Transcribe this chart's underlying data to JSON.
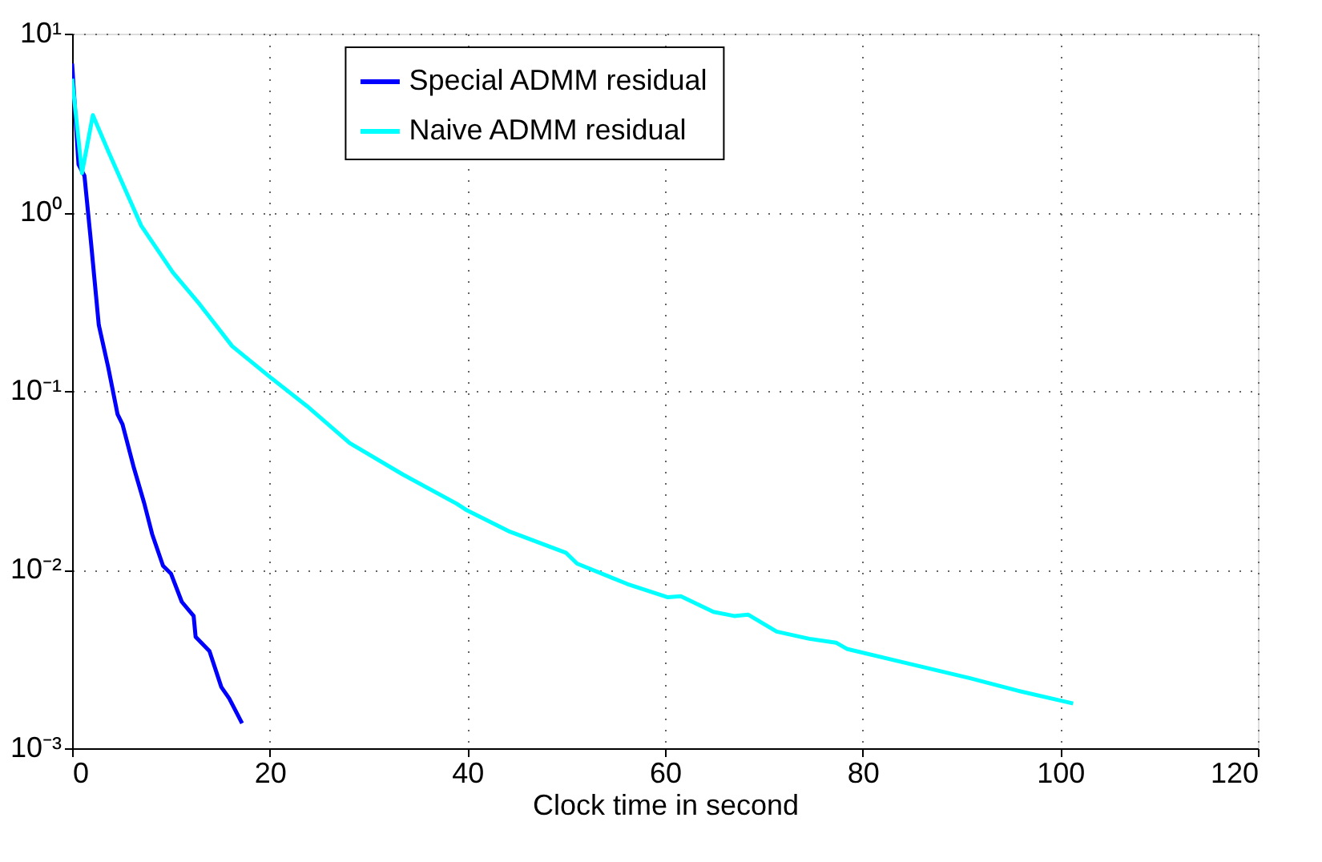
{
  "chart_data": {
    "type": "line",
    "xlabel": "Clock time in second",
    "xlim": [
      0,
      120
    ],
    "xticks": [
      0,
      20,
      40,
      60,
      80,
      100,
      120
    ],
    "ylim": [
      0.001,
      10
    ],
    "yticks": [
      {
        "value": 0.001,
        "label": "10⁻³"
      },
      {
        "value": 0.01,
        "label": "10⁻²"
      },
      {
        "value": 0.1,
        "label": "10⁻¹"
      },
      {
        "value": 1,
        "label": "10⁰"
      },
      {
        "value": 10,
        "label": "10¹"
      }
    ],
    "log": "y",
    "grid": true,
    "legend": "top",
    "marker": "none",
    "line_style": "solid",
    "series": [
      {
        "name": "Special ADMM residual",
        "color": "#0000ff",
        "x": [
          0,
          0.65,
          1.25,
          1.9,
          2.7,
          3.65,
          4.6,
          5.1,
          6.2,
          7.3,
          8.1,
          9.2,
          10.0,
          11.1,
          12.3,
          12.5,
          13.9,
          15.1,
          15.9,
          17.2
        ],
        "values": [
          6.8,
          1.85,
          1.6,
          0.69,
          0.234,
          0.136,
          0.074,
          0.065,
          0.038,
          0.0235,
          0.0158,
          0.0105,
          0.0095,
          0.0066,
          0.0055,
          0.0042,
          0.0035,
          0.0022,
          0.0019,
          0.00138
        ]
      },
      {
        "name": "Naive ADMM residual",
        "color": "#00ffff",
        "x": [
          0,
          1.0,
          2.1,
          3.7,
          7.0,
          10.2,
          12.9,
          16.2,
          20,
          23.8,
          28.1,
          33.5,
          38.9,
          40,
          44.3,
          50,
          51.1,
          56.2,
          60.3,
          61.6,
          64.9,
          67.0,
          68.4,
          71.3,
          74.6,
          77.3,
          78.4,
          84.4,
          90.8,
          95.7,
          101.3
        ],
        "values": [
          5.6,
          1.66,
          3.5,
          2.17,
          0.84,
          0.46,
          0.306,
          0.178,
          0.12,
          0.082,
          0.051,
          0.034,
          0.0234,
          0.0214,
          0.0163,
          0.0124,
          0.0108,
          0.0083,
          0.007,
          0.0071,
          0.0058,
          0.0055,
          0.0056,
          0.0045,
          0.0041,
          0.0039,
          0.0036,
          0.003,
          0.00247,
          0.0021,
          0.00178
        ]
      }
    ]
  }
}
